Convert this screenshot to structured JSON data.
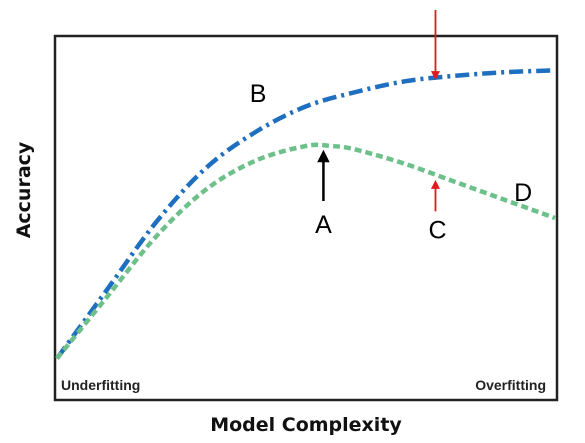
{
  "chart_data": {
    "type": "line",
    "title": "",
    "xlabel": "Model Complexity",
    "ylabel": "Accuracy",
    "xlim": [
      0,
      100
    ],
    "ylim": [
      0,
      100
    ],
    "grid": false,
    "x_ticks_visible": false,
    "y_ticks_visible": false,
    "region_labels": {
      "left": "Underfitting",
      "right": "Overfitting"
    },
    "series": [
      {
        "color": "#1f6fc0",
        "line_style": "dash-dot",
        "x": [
          0,
          10,
          20,
          30,
          40,
          50,
          60,
          70,
          80,
          90,
          100
        ],
        "y": [
          11,
          30,
          49,
          64,
          74,
          81,
          85,
          88,
          89.5,
          90.5,
          91
        ]
      },
      {
        "color": "#6ec08a",
        "line_style": "dashed",
        "x": [
          0,
          10,
          20,
          30,
          40,
          50,
          55,
          60,
          70,
          80,
          90,
          100
        ],
        "y": [
          11,
          28,
          45,
          58,
          66,
          70,
          70,
          69,
          65,
          60,
          55,
          50
        ]
      }
    ],
    "annotations": [
      {
        "label": "A",
        "arrow_color": "#000000",
        "x": 53.5,
        "y": 70
      },
      {
        "label": "B",
        "x": 46,
        "y": 82
      },
      {
        "label": "C",
        "arrow_color": "#e01b1b",
        "x": 76,
        "y": 61
      },
      {
        "label": "D",
        "x": 94,
        "y": 57
      },
      {
        "label": "",
        "arrow_color": "#e01b1b",
        "x": 76,
        "y": 89
      }
    ]
  }
}
